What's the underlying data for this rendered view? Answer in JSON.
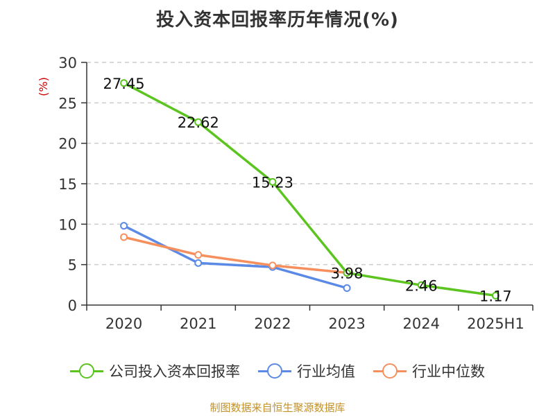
{
  "title": "投入资本回报率历年情况(%)",
  "source": "制图数据来自恒生聚源数据库",
  "colors": {
    "company": "#5bc41f",
    "industry_avg": "#5b8ae6",
    "industry_median": "#f5905e",
    "axis": "#333333",
    "grid": "#cccccc",
    "unit": "#cc0000"
  },
  "chart_data": {
    "type": "line",
    "title": "投入资本回报率历年情况(%)",
    "ylabel": "(%)",
    "xlabel": "",
    "categories": [
      "2020",
      "2021",
      "2022",
      "2023",
      "2024",
      "2025H1"
    ],
    "ylim": [
      0,
      30
    ],
    "yticks": [
      0,
      5,
      10,
      15,
      20,
      25,
      30
    ],
    "grid": true,
    "legend_position": "bottom",
    "series": [
      {
        "key": "company",
        "name": "公司投入资本回报率",
        "values": [
          27.45,
          22.62,
          15.23,
          3.98,
          2.46,
          1.17
        ],
        "labels": [
          "27.45",
          "22.62",
          "15.23",
          "3.98",
          "2.46",
          "1.17"
        ],
        "color": "#5bc41f"
      },
      {
        "key": "industry_avg",
        "name": "行业均值",
        "values": [
          9.8,
          5.2,
          4.7,
          2.1,
          null,
          null
        ],
        "color": "#5b8ae6"
      },
      {
        "key": "industry_median",
        "name": "行业中位数",
        "values": [
          8.4,
          6.2,
          4.9,
          4.0,
          null,
          null
        ],
        "color": "#f5905e"
      }
    ]
  }
}
